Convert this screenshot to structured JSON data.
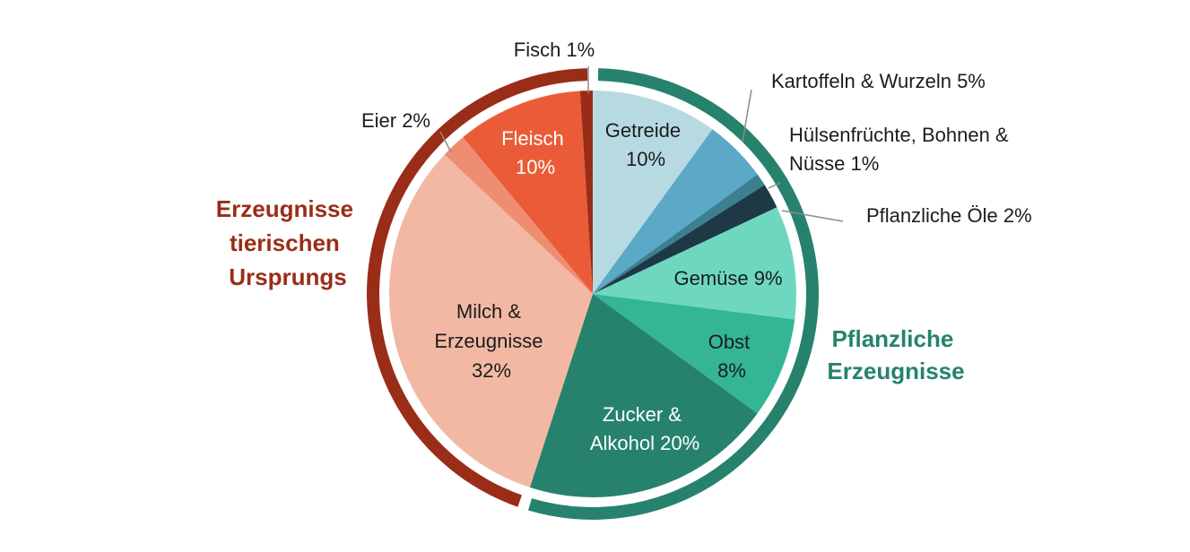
{
  "chart_data": {
    "type": "pie",
    "slices": [
      {
        "label": "Getreide 10%",
        "value": 10,
        "color": "#b7dae2",
        "text_color": "#1c1c1c"
      },
      {
        "label": "Kartoffeln & Wurzeln 5%",
        "value": 5,
        "color": "#5ba9c6",
        "text_color": "#1c1c1c"
      },
      {
        "label": "Hülsenfrüchte, Bohnen & Nüsse 1%",
        "value": 1,
        "color": "#3b7f91",
        "text_color": "#1c1c1c"
      },
      {
        "label": "Pflanzliche Öle 2%",
        "value": 2,
        "color": "#1e3845",
        "text_color": "#1c1c1c"
      },
      {
        "label": "Gemüse 9%",
        "value": 9,
        "color": "#6dd8bf",
        "text_color": "#1c1c1c"
      },
      {
        "label": "Obst 8%",
        "value": 8,
        "color": "#33b596",
        "text_color": "#1c1c1c"
      },
      {
        "label": "Zucker & Alkohol 20%",
        "value": 20,
        "color": "#26826d",
        "text_color": "#ffffff"
      },
      {
        "label": "Milch & Erzeugnisse 32%",
        "value": 32,
        "color": "#f3b8a4",
        "text_color": "#1c1c1c"
      },
      {
        "label": "Eier 2%",
        "value": 2,
        "color": "#ef8d72",
        "text_color": "#1c1c1c"
      },
      {
        "label": "Fleisch 10%",
        "value": 10,
        "color": "#ea5c37",
        "text_color": "#ffffff"
      },
      {
        "label": "Fisch 1%",
        "value": 1,
        "color": "#9a2d18",
        "text_color": "#1c1c1c"
      }
    ],
    "groups": [
      {
        "name": "Pflanzliche Erzeugnisse",
        "members": [
          "Getreide",
          "Kartoffeln & Wurzeln",
          "Hülsenfrüchte, Bohnen & Nüsse",
          "Pflanzliche Öle",
          "Gemüse",
          "Obst",
          "Zucker & Alkohol"
        ],
        "color": "#26826d"
      },
      {
        "name": "Erzeugnisse tierischen Ursprungs",
        "members": [
          "Milch & Erzeugnisse",
          "Eier",
          "Fleisch",
          "Fisch"
        ],
        "color": "#9a2d18"
      }
    ]
  },
  "text": {
    "getreide": [
      "Getreide",
      "10%"
    ],
    "kartoffeln": "Kartoffeln & Wurzeln 5%",
    "huelsen": [
      "Hülsenfrüchte, Bohnen &",
      "Nüsse 1%"
    ],
    "oele": "Pflanzliche Öle 2%",
    "gemuese": "Gemüse 9%",
    "obst": [
      "Obst",
      "8%"
    ],
    "zucker": [
      "Zucker &",
      "Alkohol 20%"
    ],
    "milch": [
      "Milch &",
      "Erzeugnisse",
      "32%"
    ],
    "eier": "Eier 2%",
    "fleisch": [
      "Fleisch",
      "10%"
    ],
    "fisch": "Fisch 1%",
    "group_plant": [
      "Pflanzliche",
      "Erzeugnisse"
    ],
    "group_animal": [
      "Erzeugnisse",
      "tierischen",
      "Ursprungs"
    ]
  }
}
